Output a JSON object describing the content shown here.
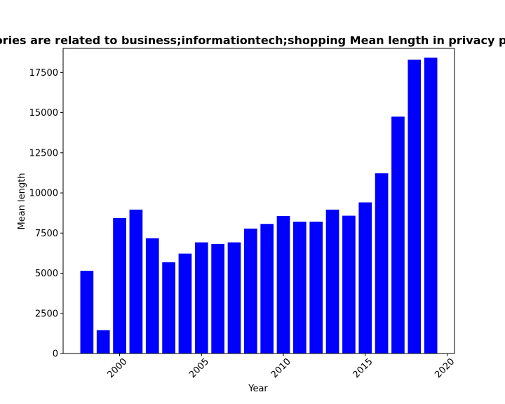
{
  "chart_data": {
    "type": "bar",
    "title": "Categories are related to business;informationtech;shopping Mean length in privacy policies",
    "xlabel": "Year",
    "ylabel": "Mean length",
    "x": [
      1998,
      1999,
      2000,
      2001,
      2002,
      2003,
      2004,
      2005,
      2006,
      2007,
      2008,
      2009,
      2010,
      2011,
      2012,
      2013,
      2014,
      2015,
      2016,
      2017,
      2018,
      2019
    ],
    "values": [
      5150,
      1450,
      8430,
      8960,
      7180,
      5680,
      6220,
      6920,
      6820,
      6920,
      7780,
      8070,
      8560,
      8210,
      8210,
      8960,
      8580,
      9410,
      11220,
      14750,
      18300,
      18420
    ],
    "xlim": [
      1996.55,
      2020.45
    ],
    "ylim": [
      0,
      19000
    ],
    "xticks": [
      2000,
      2005,
      2010,
      2015,
      2020
    ],
    "xtick_labels": [
      "2000",
      "2005",
      "2010",
      "2015",
      "2020"
    ],
    "yticks": [
      0,
      2500,
      5000,
      7500,
      10000,
      12500,
      15000,
      17500
    ],
    "ytick_labels": [
      "0",
      "2500",
      "5000",
      "7500",
      "10000",
      "12500",
      "15000",
      "17500"
    ],
    "bar_color": "#0000ff",
    "grid": false,
    "legend": "none"
  }
}
